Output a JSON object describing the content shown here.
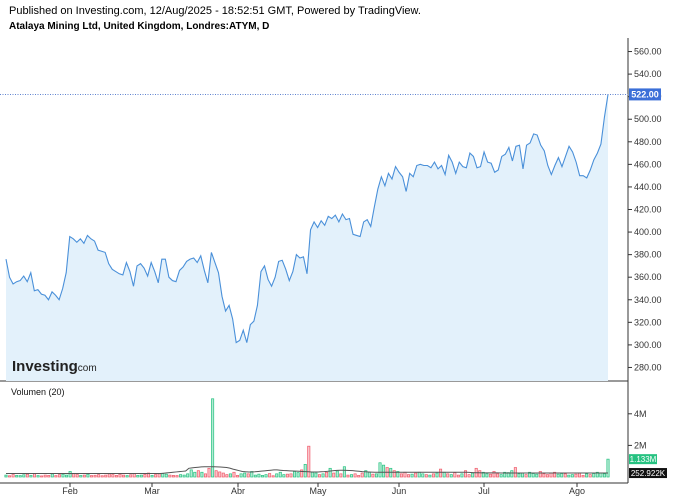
{
  "header": {
    "published": "Published on Investing.com, 12/Aug/2025 - 18:52:51 GMT, Powered by TradingView.",
    "subtitle": "Atalaya Mining Ltd, United Kingdom, Londres:ATYM, D"
  },
  "logo": {
    "text": "Investing",
    "suffix": ".com"
  },
  "chart_data": {
    "type": "area",
    "price": {
      "ylim": [
        268,
        572
      ],
      "ticks": [
        "560.00",
        "540.00",
        "520.00",
        "500.00",
        "480.00",
        "460.00",
        "440.00",
        "420.00",
        "400.00",
        "380.00",
        "360.00",
        "340.00",
        "320.00",
        "300.00",
        "280.00"
      ],
      "tick_values": [
        560,
        540,
        520,
        500,
        480,
        460,
        440,
        420,
        400,
        380,
        360,
        340,
        320,
        300,
        280
      ],
      "last_price": 522,
      "last_label": "522.00",
      "line_color": "#4a90d9",
      "fill_color": "#e3f1fb",
      "values": [
        376,
        360,
        354,
        356,
        357,
        361,
        356,
        364,
        348,
        349,
        345,
        344,
        340,
        347,
        344,
        340,
        350,
        364,
        396,
        394,
        391,
        394,
        390,
        397,
        394,
        392,
        384,
        383,
        382,
        372,
        367,
        365,
        363,
        362,
        373,
        365,
        352,
        370,
        372,
        368,
        361,
        373,
        365,
        355,
        376,
        376,
        360,
        357,
        356,
        366,
        369,
        374,
        376,
        377,
        373,
        379,
        366,
        355,
        382,
        373,
        364,
        343,
        330,
        335,
        323,
        302,
        304,
        313,
        302,
        318,
        321,
        335,
        365,
        370,
        358,
        352,
        360,
        374,
        375,
        367,
        357,
        365,
        380,
        377,
        378,
        363,
        402,
        409,
        404,
        410,
        406,
        414,
        412,
        415,
        409,
        416,
        411,
        412,
        398,
        397,
        396,
        409,
        411,
        405,
        422,
        438,
        449,
        441,
        452,
        447,
        458,
        453,
        449,
        436,
        452,
        449,
        459,
        460,
        459,
        459,
        457,
        462,
        456,
        459,
        451,
        468,
        462,
        452,
        462,
        458,
        457,
        470,
        467,
        457,
        458,
        471,
        462,
        461,
        453,
        455,
        467,
        469,
        475,
        463,
        476,
        477,
        456,
        477,
        479,
        487,
        486,
        477,
        472,
        459,
        451,
        459,
        466,
        458,
        467,
        476,
        471,
        462,
        450,
        450,
        448,
        455,
        464,
        470,
        478,
        502,
        522
      ],
      "x_ticks": [
        "Feb",
        "Mar",
        "Abr",
        "May",
        "Jun",
        "Jul",
        "Ago"
      ]
    },
    "volume": {
      "title": "Volumen (20)",
      "ylim": [
        0,
        5
      ],
      "ticks": [
        "4M",
        "2M"
      ],
      "tick_values": [
        4,
        2
      ],
      "last_label": "1.133M",
      "ma_label": "252.922K",
      "unit": "M",
      "up_color": "#26c281",
      "down_color": "#f05a6a",
      "ma_color": "#555555",
      "values": [
        0.12,
        0.08,
        0.15,
        0.1,
        0.09,
        0.14,
        0.18,
        0.1,
        0.22,
        0.09,
        0.07,
        0.12,
        0.1,
        0.2,
        0.09,
        0.15,
        0.18,
        0.12,
        0.35,
        0.22,
        0.15,
        0.1,
        0.12,
        0.18,
        0.09,
        0.11,
        0.15,
        0.08,
        0.12,
        0.2,
        0.15,
        0.1,
        0.18,
        0.12,
        0.09,
        0.14,
        0.22,
        0.1,
        0.12,
        0.16,
        0.25,
        0.1,
        0.15,
        0.2,
        0.22,
        0.18,
        0.12,
        0.1,
        0.09,
        0.15,
        0.12,
        0.2,
        0.45,
        0.3,
        0.4,
        0.3,
        0.2,
        0.55,
        4.95,
        0.4,
        0.32,
        0.25,
        0.15,
        0.2,
        0.3,
        0.1,
        0.2,
        0.25,
        0.2,
        0.35,
        0.12,
        0.18,
        0.1,
        0.15,
        0.22,
        0.08,
        0.2,
        0.3,
        0.15,
        0.18,
        0.2,
        0.35,
        0.28,
        0.45,
        0.8,
        1.95,
        0.3,
        0.25,
        0.15,
        0.2,
        0.3,
        0.55,
        0.25,
        0.38,
        0.2,
        0.65,
        0.12,
        0.15,
        0.2,
        0.1,
        0.25,
        0.4,
        0.3,
        0.18,
        0.2,
        0.9,
        0.75,
        0.6,
        0.55,
        0.4,
        0.35,
        0.2,
        0.3,
        0.15,
        0.18,
        0.25,
        0.3,
        0.2,
        0.15,
        0.12,
        0.2,
        0.25,
        0.5,
        0.3,
        0.2,
        0.15,
        0.28,
        0.12,
        0.2,
        0.4,
        0.15,
        0.25,
        0.55,
        0.4,
        0.3,
        0.2,
        0.18,
        0.35,
        0.2,
        0.15,
        0.3,
        0.28,
        0.4,
        0.6,
        0.2,
        0.25,
        0.15,
        0.3,
        0.22,
        0.18,
        0.35,
        0.2,
        0.15,
        0.25,
        0.3,
        0.18,
        0.22,
        0.2,
        0.12,
        0.15,
        0.18,
        0.25,
        0.1,
        0.2,
        0.15,
        0.22,
        0.3,
        0.25,
        0.2,
        1.13
      ],
      "ma": [
        0.22,
        0.22,
        0.22,
        0.22,
        0.22,
        0.22,
        0.22,
        0.22,
        0.22,
        0.22,
        0.22,
        0.22,
        0.22,
        0.22,
        0.22,
        0.22,
        0.22,
        0.22,
        0.22,
        0.22,
        0.22,
        0.22,
        0.22,
        0.22,
        0.22,
        0.22,
        0.22,
        0.22,
        0.22,
        0.22,
        0.22,
        0.22,
        0.22,
        0.22,
        0.22,
        0.22,
        0.22,
        0.22,
        0.22,
        0.22,
        0.22,
        0.22,
        0.22,
        0.22,
        0.22,
        0.22,
        0.22,
        0.22,
        0.22,
        0.22,
        0.24,
        0.26,
        0.28,
        0.3,
        0.32,
        0.34,
        0.36,
        0.38,
        0.55,
        0.58,
        0.6,
        0.62,
        0.64,
        0.65,
        0.65,
        0.65,
        0.65,
        0.64,
        0.63,
        0.62,
        0.6,
        0.56,
        0.5,
        0.45,
        0.4,
        0.35,
        0.33,
        0.32,
        0.32,
        0.33,
        0.35,
        0.37,
        0.39,
        0.41,
        0.43,
        0.45,
        0.45,
        0.43,
        0.41,
        0.4,
        0.39,
        0.38,
        0.37,
        0.36,
        0.35,
        0.34,
        0.33,
        0.32,
        0.32,
        0.32,
        0.33,
        0.34,
        0.36,
        0.38,
        0.4,
        0.42,
        0.43,
        0.43,
        0.42,
        0.41,
        0.4,
        0.38,
        0.36,
        0.34,
        0.33,
        0.32,
        0.31,
        0.3,
        0.3,
        0.3,
        0.3,
        0.3,
        0.3,
        0.3,
        0.3,
        0.3,
        0.3,
        0.3,
        0.3,
        0.3,
        0.3,
        0.3,
        0.3,
        0.3,
        0.3,
        0.3,
        0.3,
        0.3,
        0.3,
        0.3,
        0.3,
        0.3,
        0.3,
        0.3,
        0.3,
        0.3,
        0.3,
        0.29,
        0.28,
        0.27,
        0.27,
        0.26,
        0.26,
        0.26,
        0.26,
        0.26,
        0.26,
        0.25,
        0.25,
        0.25,
        0.25,
        0.25,
        0.25,
        0.25,
        0.25,
        0.25,
        0.25,
        0.25,
        0.25,
        0.25,
        0.25,
        0.25,
        0.25,
        0.25,
        0.25,
        0.25,
        0.25,
        0.25,
        0.25,
        0.25,
        0.25,
        0.25,
        0.25,
        0.25,
        0.25,
        0.25,
        0.25,
        0.25,
        0.25,
        0.25,
        0.25,
        0.25
      ]
    }
  }
}
